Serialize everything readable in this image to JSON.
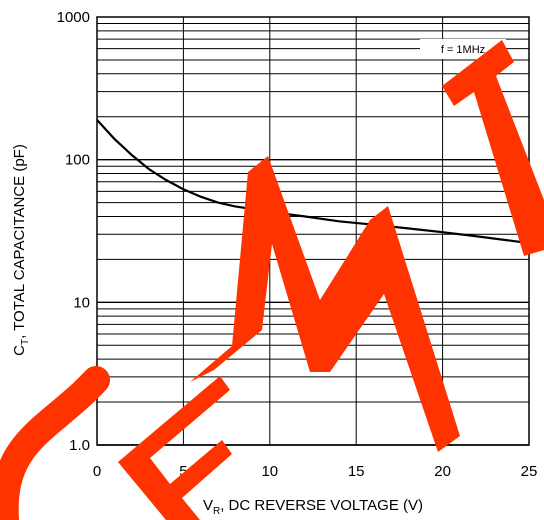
{
  "chart_data": {
    "type": "line",
    "xlabel_main": "V",
    "xlabel_sub": "R",
    "xlabel_rest": ", DC REVERSE VOLTAGE (V)",
    "ylabel_main": "C",
    "ylabel_sub": "T",
    "ylabel_rest": ", TOTAL CAPACITANCE (pF)",
    "xlim": [
      0,
      25
    ],
    "ylim": [
      1,
      1000
    ],
    "yscale": "log",
    "grid": true,
    "x_ticks": [
      "0",
      "5",
      "10",
      "15",
      "20",
      "25"
    ],
    "y_ticks": [
      "1.0",
      "10",
      "100",
      "1000"
    ],
    "annotation": "f = 1MHz",
    "series": [
      {
        "x": [
          0,
          1,
          2,
          3,
          4,
          5,
          6,
          7,
          8,
          9,
          10,
          12,
          14,
          16,
          18,
          20,
          22,
          24,
          25
        ],
        "y": [
          190,
          140,
          108,
          86,
          72,
          62,
          55,
          50,
          47,
          45,
          43,
          40,
          37,
          35,
          33,
          31,
          29,
          27,
          26
        ]
      }
    ],
    "watermark": "SEMTECH",
    "watermark_color": "#ff3300"
  }
}
